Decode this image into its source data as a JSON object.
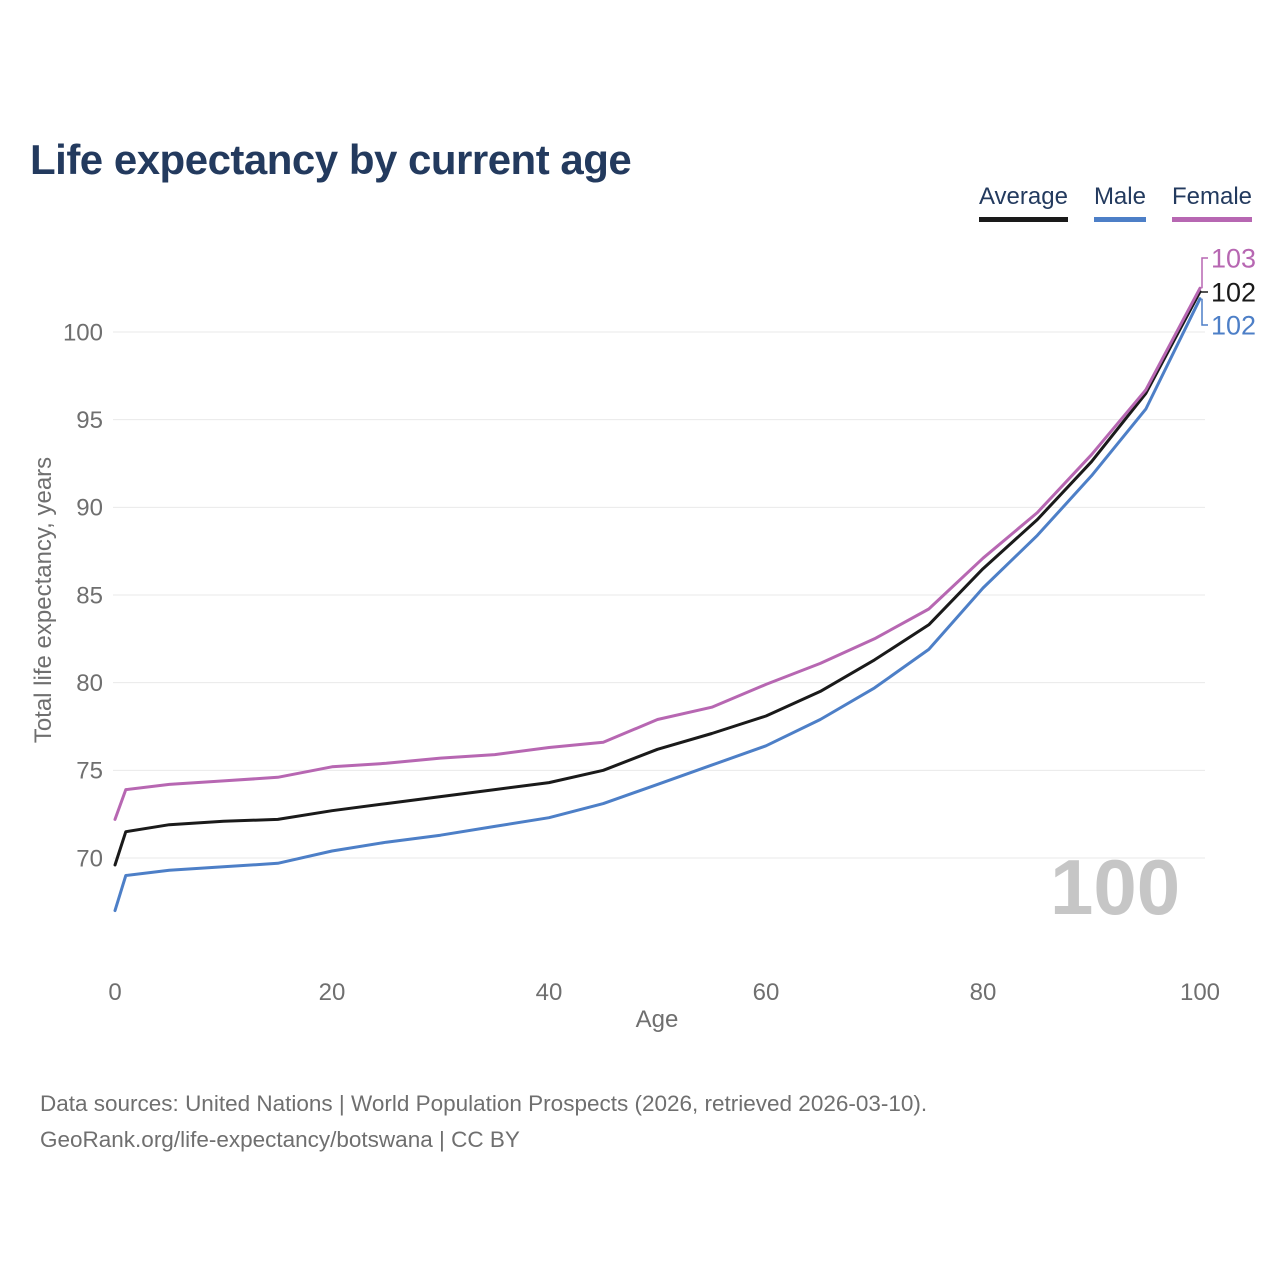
{
  "title": "Life expectancy by current age",
  "legend": [
    {
      "label": "Average",
      "color": "#1a1a1a"
    },
    {
      "label": "Male",
      "color": "#4d7fc7"
    },
    {
      "label": "Female",
      "color": "#b767b2"
    }
  ],
  "watermark": "100",
  "footer": {
    "line1": "Data sources: United Nations | World Population Prospects (2026, retrieved 2026-03-10).",
    "line2": "GeoRank.org/life-expectancy/botswana | CC BY"
  },
  "chart_data": {
    "type": "line",
    "title": "Life expectancy by current age",
    "xlabel": "Age",
    "ylabel": "Total life expectancy, years",
    "xlim": [
      0,
      100
    ],
    "ylim": [
      66,
      103
    ],
    "x_ticks": [
      0,
      20,
      40,
      60,
      80,
      100
    ],
    "y_ticks": [
      70,
      75,
      80,
      85,
      90,
      95,
      100
    ],
    "grid": "horizontal",
    "legend_position": "top-right",
    "grid_color": "#eaeaea",
    "tick_color": "#6f6f6f",
    "x": [
      0,
      1,
      5,
      10,
      15,
      20,
      25,
      30,
      35,
      40,
      45,
      50,
      55,
      60,
      65,
      70,
      75,
      80,
      85,
      90,
      95,
      100
    ],
    "series": [
      {
        "name": "Average",
        "color": "#1a1a1a",
        "end_label": "102",
        "values": [
          69.6,
          71.5,
          71.9,
          72.1,
          72.2,
          72.7,
          73.1,
          73.5,
          73.9,
          74.3,
          75.0,
          76.2,
          77.1,
          78.1,
          79.5,
          81.3,
          83.3,
          86.5,
          89.3,
          92.6,
          96.5,
          102.3
        ]
      },
      {
        "name": "Male",
        "color": "#4d7fc7",
        "end_label": "102",
        "values": [
          67.0,
          69.0,
          69.3,
          69.5,
          69.7,
          70.4,
          70.9,
          71.3,
          71.8,
          72.3,
          73.1,
          74.2,
          75.3,
          76.4,
          77.9,
          79.7,
          81.9,
          85.4,
          88.4,
          91.8,
          95.6,
          101.9
        ]
      },
      {
        "name": "Female",
        "color": "#b767b2",
        "end_label": "103",
        "values": [
          72.2,
          73.9,
          74.2,
          74.4,
          74.6,
          75.2,
          75.4,
          75.7,
          75.9,
          76.3,
          76.6,
          77.9,
          78.6,
          79.9,
          81.1,
          82.5,
          84.2,
          87.1,
          89.7,
          93.0,
          96.7,
          102.5
        ]
      }
    ]
  }
}
